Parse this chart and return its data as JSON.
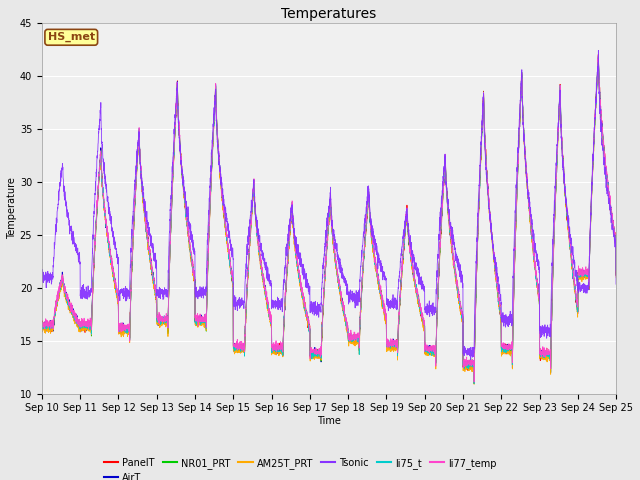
{
  "title": "Temperatures",
  "xlabel": "Time",
  "ylabel": "Temperature",
  "ylim": [
    10,
    45
  ],
  "xlim": [
    0,
    15
  ],
  "series_names": [
    "PanelT",
    "AirT",
    "NR01_PRT",
    "AM25T_PRT",
    "Tsonic",
    "li75_t",
    "li77_temp"
  ],
  "series_colors": [
    "#ff0000",
    "#0000cc",
    "#00cc00",
    "#ffaa00",
    "#8833ff",
    "#00cccc",
    "#ff44cc"
  ],
  "annotation_text": "HS_met",
  "annotation_color": "#8b4513",
  "annotation_bg": "#ffff99",
  "annotation_edge": "#8b4513",
  "background_color": "#e8e8e8",
  "plot_bg": "#f0f0f0",
  "xtick_labels": [
    "Sep 10",
    "Sep 11",
    "Sep 12",
    "Sep 13",
    "Sep 14",
    "Sep 15",
    "Sep 16",
    "Sep 17",
    "Sep 18",
    "Sep 19",
    "Sep 20",
    "Sep 21",
    "Sep 22",
    "Sep 23",
    "Sep 24",
    "Sep 25"
  ],
  "ytick_labels": [
    "10",
    "15",
    "20",
    "25",
    "30",
    "35",
    "40",
    "45"
  ],
  "ytick_vals": [
    10,
    15,
    20,
    25,
    30,
    35,
    40,
    45
  ],
  "grid_color": "#ffffff",
  "title_fontsize": 10,
  "axis_fontsize": 7,
  "tick_fontsize": 7,
  "legend_fontsize": 7,
  "day_peaks": [
    21,
    33,
    35,
    39.5,
    39,
    30,
    28,
    28.5,
    29,
    27.5,
    32.5,
    38.5,
    40.5,
    39,
    42
  ],
  "day_mins": [
    16,
    15,
    14.5,
    15,
    15,
    13,
    13,
    12.5,
    14,
    13.5,
    12.5,
    10.5,
    12,
    11.5,
    19.5
  ],
  "tsonic_extra_peaks": [
    32,
    37.5,
    35,
    39.5,
    39,
    30,
    28,
    29,
    29.5,
    27.5,
    32.5,
    38.5,
    40.5,
    39,
    42
  ],
  "tsonic_extra_mins": [
    21,
    19.5,
    19.5,
    19.5,
    19.5,
    18.5,
    18.5,
    18,
    19,
    18.5,
    18,
    14,
    17,
    16,
    20
  ],
  "linewidth": 0.6
}
